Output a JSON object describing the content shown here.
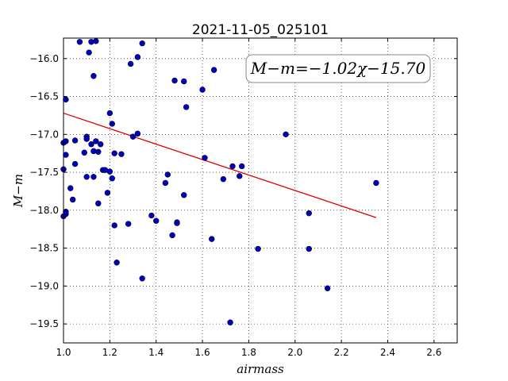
{
  "chart_data": {
    "type": "scatter",
    "title": "2021-11-05_025101",
    "xlabel": "airmass",
    "ylabel": "M−m",
    "xlim": [
      1.0,
      2.7
    ],
    "ylim": [
      -15.73,
      -19.75
    ],
    "y_inverted": true,
    "grid": true,
    "xticks": [
      1.0,
      1.2,
      1.4,
      1.6,
      1.8,
      2.0,
      2.2,
      2.4,
      2.6
    ],
    "xtick_labels": [
      "1.0",
      "1.2",
      "1.4",
      "1.6",
      "1.8",
      "2.0",
      "2.2",
      "2.4",
      "2.6"
    ],
    "yticks": [
      -16.0,
      -16.5,
      -17.0,
      -17.5,
      -18.0,
      -18.5,
      -19.0,
      -19.5
    ],
    "ytick_labels": [
      "−16.0",
      "−16.5",
      "−17.0",
      "−17.5",
      "−18.0",
      "−18.5",
      "−19.0",
      "−19.5"
    ],
    "annotation": "M−m=−1.02χ−15.70",
    "annotation_position": "top-right",
    "marker_color": "#0000bb",
    "fit_color": "#dd0000",
    "fit_line": {
      "slope": -1.02,
      "intercept": -15.7,
      "x_range": [
        1.0,
        2.35
      ]
    },
    "points": [
      {
        "x": 1.0,
        "y": -18.08
      },
      {
        "x": 1.01,
        "y": -18.05
      },
      {
        "x": 1.01,
        "y": -18.02
      },
      {
        "x": 1.0,
        "y": -17.46
      },
      {
        "x": 1.01,
        "y": -17.27
      },
      {
        "x": 1.0,
        "y": -17.11
      },
      {
        "x": 1.01,
        "y": -17.09
      },
      {
        "x": 1.01,
        "y": -16.54
      },
      {
        "x": 1.03,
        "y": -17.71
      },
      {
        "x": 1.04,
        "y": -17.86
      },
      {
        "x": 1.05,
        "y": -17.39
      },
      {
        "x": 1.05,
        "y": -17.08
      },
      {
        "x": 1.07,
        "y": -15.78
      },
      {
        "x": 1.09,
        "y": -17.24
      },
      {
        "x": 1.1,
        "y": -17.03
      },
      {
        "x": 1.1,
        "y": -17.06
      },
      {
        "x": 1.1,
        "y": -17.56
      },
      {
        "x": 1.11,
        "y": -15.92
      },
      {
        "x": 1.12,
        "y": -15.78
      },
      {
        "x": 1.12,
        "y": -17.13
      },
      {
        "x": 1.13,
        "y": -16.23
      },
      {
        "x": 1.13,
        "y": -17.56
      },
      {
        "x": 1.13,
        "y": -17.22
      },
      {
        "x": 1.14,
        "y": -17.09
      },
      {
        "x": 1.14,
        "y": -15.77
      },
      {
        "x": 1.15,
        "y": -17.23
      },
      {
        "x": 1.15,
        "y": -17.91
      },
      {
        "x": 1.16,
        "y": -17.13
      },
      {
        "x": 1.17,
        "y": -17.47
      },
      {
        "x": 1.18,
        "y": -17.47
      },
      {
        "x": 1.19,
        "y": -17.77
      },
      {
        "x": 1.2,
        "y": -17.49
      },
      {
        "x": 1.2,
        "y": -16.72
      },
      {
        "x": 1.21,
        "y": -16.86
      },
      {
        "x": 1.21,
        "y": -17.58
      },
      {
        "x": 1.22,
        "y": -17.25
      },
      {
        "x": 1.22,
        "y": -18.2
      },
      {
        "x": 1.23,
        "y": -18.69
      },
      {
        "x": 1.25,
        "y": -17.26
      },
      {
        "x": 1.28,
        "y": -18.18
      },
      {
        "x": 1.29,
        "y": -16.07
      },
      {
        "x": 1.3,
        "y": -17.03
      },
      {
        "x": 1.32,
        "y": -15.98
      },
      {
        "x": 1.32,
        "y": -16.99
      },
      {
        "x": 1.34,
        "y": -15.8
      },
      {
        "x": 1.34,
        "y": -18.9
      },
      {
        "x": 1.38,
        "y": -18.07
      },
      {
        "x": 1.4,
        "y": -18.14
      },
      {
        "x": 1.44,
        "y": -17.64
      },
      {
        "x": 1.45,
        "y": -17.53
      },
      {
        "x": 1.47,
        "y": -18.33
      },
      {
        "x": 1.48,
        "y": -16.29
      },
      {
        "x": 1.49,
        "y": -18.16
      },
      {
        "x": 1.49,
        "y": -18.17
      },
      {
        "x": 1.52,
        "y": -16.3
      },
      {
        "x": 1.52,
        "y": -17.8
      },
      {
        "x": 1.53,
        "y": -16.64
      },
      {
        "x": 1.6,
        "y": -16.41
      },
      {
        "x": 1.61,
        "y": -17.31
      },
      {
        "x": 1.64,
        "y": -18.38
      },
      {
        "x": 1.65,
        "y": -16.15
      },
      {
        "x": 1.69,
        "y": -17.59
      },
      {
        "x": 1.72,
        "y": -19.48
      },
      {
        "x": 1.73,
        "y": -17.42
      },
      {
        "x": 1.76,
        "y": -17.55
      },
      {
        "x": 1.77,
        "y": -17.42
      },
      {
        "x": 1.84,
        "y": -18.51
      },
      {
        "x": 1.96,
        "y": -17.0
      },
      {
        "x": 2.06,
        "y": -18.51
      },
      {
        "x": 2.06,
        "y": -18.04
      },
      {
        "x": 2.14,
        "y": -19.03
      },
      {
        "x": 2.35,
        "y": -17.64
      }
    ]
  }
}
